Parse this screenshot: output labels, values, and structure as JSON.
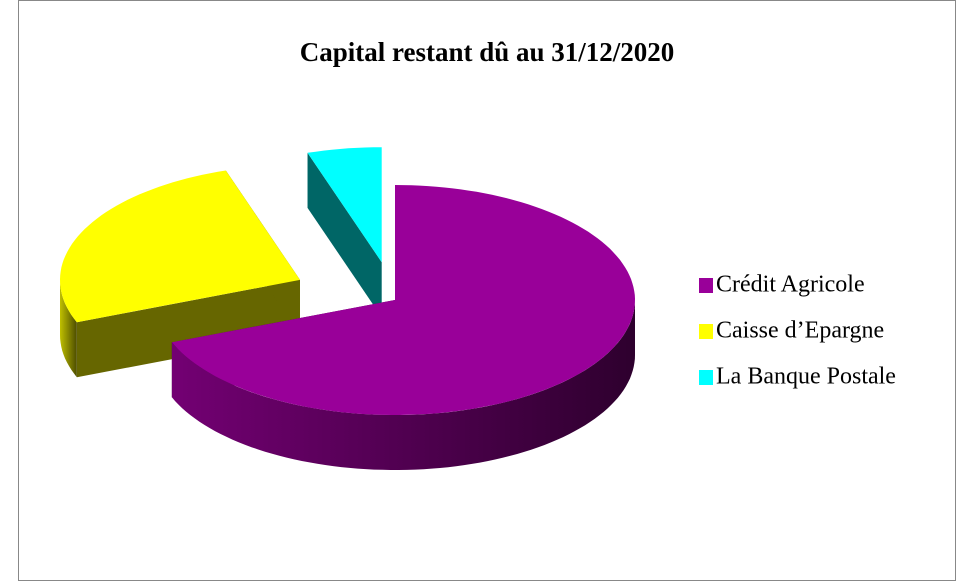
{
  "chart_data": {
    "type": "pie",
    "title": "Capital restant dû au 31/12/2020",
    "categories": [
      "Crédit Agricole",
      "Caisse d’Epargne",
      "La Banque Postale"
    ],
    "values": [
      69,
      26,
      5
    ],
    "colors": [
      "#990099",
      "#ffff00",
      "#00ffff"
    ],
    "legend": "right"
  }
}
